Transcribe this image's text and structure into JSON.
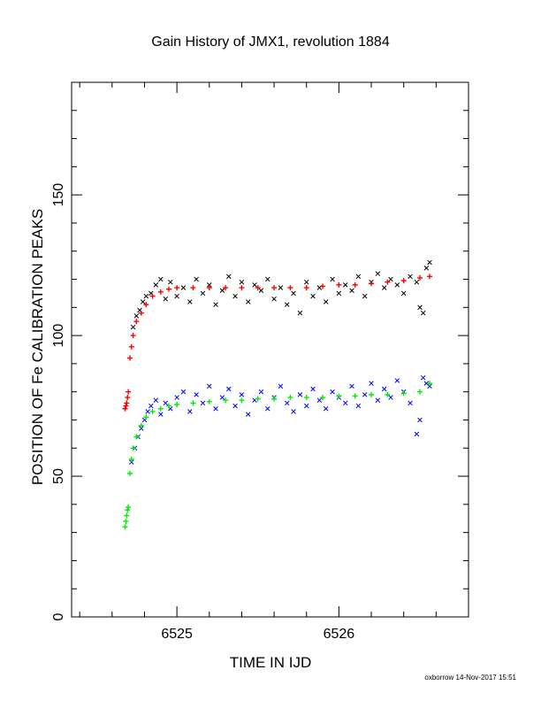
{
  "chart_data": {
    "type": "scatter",
    "title": "Gain History of JMX1, revolution 1884",
    "xlabel": "TIME IN IJD",
    "ylabel": "POSITION OF Fe CALIBRATION PEAKS",
    "xlim": [
      6524.35,
      6526.8
    ],
    "ylim": [
      0,
      190
    ],
    "x_ticks": [
      6525,
      6526
    ],
    "x_tick_labels": [
      "6525",
      "6526"
    ],
    "y_ticks": [
      0,
      50,
      100,
      150
    ],
    "y_tick_labels": [
      "0",
      "50",
      "100",
      "150"
    ],
    "grid": false,
    "colors": {
      "upper_fit": "#ff0000",
      "upper_data": "#000000",
      "lower_fit": "#00ee00",
      "lower_data": "#0000ff",
      "axes": "#000000"
    },
    "series": [
      {
        "marker": "x",
        "color": "#000000",
        "x": [
          6524.73,
          6524.75,
          6524.77,
          6524.79,
          6524.81,
          6524.84,
          6524.87,
          6524.9,
          6524.93,
          6524.96,
          6525.0,
          6525.04,
          6525.08,
          6525.12,
          6525.16,
          6525.2,
          6525.24,
          6525.28,
          6525.32,
          6525.36,
          6525.4,
          6525.44,
          6525.48,
          6525.52,
          6525.56,
          6525.6,
          6525.64,
          6525.68,
          6525.72,
          6525.76,
          6525.8,
          6525.84,
          6525.88,
          6525.92,
          6525.96,
          6526.0,
          6526.04,
          6526.08,
          6526.12,
          6526.16,
          6526.2,
          6526.24,
          6526.28,
          6526.32,
          6526.36,
          6526.4,
          6526.44,
          6526.48,
          6526.5,
          6526.52,
          6526.54,
          6526.56
        ],
        "y": [
          103,
          107,
          109,
          112,
          114,
          115,
          118,
          120,
          113,
          119,
          114,
          117,
          112,
          120,
          115,
          118,
          111,
          116,
          121,
          114,
          119,
          112,
          118,
          116,
          120,
          113,
          117,
          111,
          115,
          108,
          119,
          114,
          117,
          112,
          120,
          115,
          118,
          116,
          121,
          114,
          119,
          122,
          117,
          120,
          118,
          115,
          121,
          119,
          110,
          108,
          124,
          126
        ]
      },
      {
        "marker": "+",
        "color": "#ff0000",
        "x": [
          6524.68,
          6524.685,
          6524.69,
          6524.695,
          6524.7,
          6524.71,
          6524.72,
          6524.73,
          6524.75,
          6524.78,
          6524.81,
          6524.85,
          6524.9,
          6524.95,
          6525.0,
          6525.1,
          6525.2,
          6525.3,
          6525.4,
          6525.5,
          6525.6,
          6525.7,
          6525.8,
          6525.9,
          6526.0,
          6526.1,
          6526.2,
          6526.3,
          6526.4,
          6526.5,
          6526.56
        ],
        "y": [
          74,
          75,
          76,
          78,
          80,
          92,
          96,
          100,
          105,
          108,
          111,
          114,
          115.5,
          116.5,
          117,
          117,
          117,
          117,
          117,
          117,
          117,
          117,
          117,
          117.5,
          118,
          118,
          118.5,
          119,
          119.5,
          120.5,
          121
        ]
      },
      {
        "marker": "x",
        "color": "#0000ff",
        "x": [
          6524.72,
          6524.74,
          6524.76,
          6524.78,
          6524.8,
          6524.82,
          6524.84,
          6524.87,
          6524.9,
          6524.93,
          6524.96,
          6525.0,
          6525.04,
          6525.08,
          6525.12,
          6525.16,
          6525.2,
          6525.24,
          6525.28,
          6525.32,
          6525.36,
          6525.4,
          6525.44,
          6525.48,
          6525.52,
          6525.56,
          6525.6,
          6525.64,
          6525.68,
          6525.72,
          6525.76,
          6525.8,
          6525.84,
          6525.88,
          6525.92,
          6525.96,
          6526.0,
          6526.04,
          6526.08,
          6526.12,
          6526.16,
          6526.2,
          6526.24,
          6526.28,
          6526.32,
          6526.36,
          6526.4,
          6526.44,
          6526.48,
          6526.5,
          6526.52,
          6526.54,
          6526.56
        ],
        "y": [
          55,
          60,
          64,
          67,
          70,
          73,
          75,
          77,
          72,
          76,
          74,
          78,
          80,
          73,
          79,
          76,
          82,
          74,
          78,
          81,
          75,
          79,
          72,
          77,
          80,
          74,
          78,
          82,
          76,
          73,
          79,
          75,
          81,
          77,
          74,
          80,
          78,
          76,
          82,
          75,
          79,
          83,
          77,
          81,
          78,
          84,
          80,
          76,
          65,
          70,
          85,
          83,
          82
        ]
      },
      {
        "marker": "+",
        "color": "#00ee00",
        "x": [
          6524.68,
          6524.685,
          6524.69,
          6524.695,
          6524.7,
          6524.71,
          6524.72,
          6524.73,
          6524.75,
          6524.78,
          6524.81,
          6524.85,
          6524.9,
          6524.95,
          6525.0,
          6525.1,
          6525.2,
          6525.3,
          6525.4,
          6525.5,
          6525.6,
          6525.7,
          6525.8,
          6525.9,
          6526.0,
          6526.1,
          6526.2,
          6526.3,
          6526.4,
          6526.5,
          6526.56
        ],
        "y": [
          32,
          34,
          36,
          38,
          39,
          51,
          56,
          60,
          64,
          68,
          71,
          73,
          74,
          75,
          75.5,
          76,
          76.5,
          77,
          77,
          77.5,
          77.5,
          78,
          78,
          78,
          78.5,
          78.5,
          79,
          79,
          79.5,
          80,
          83
        ]
      }
    ]
  },
  "footer": "oxborrow 14-Nov-2017 15:51"
}
